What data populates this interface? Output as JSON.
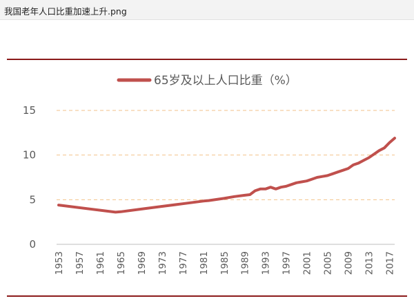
{
  "window": {
    "file_name": "我国老年人口比重加速上升.png"
  },
  "colors": {
    "line": "#c0504d",
    "rule": "#8b1a1a",
    "grid": "#f2c28a",
    "text": "#595959",
    "axis": "#bfbfbf"
  },
  "chart_data": {
    "type": "line",
    "title": "",
    "xlabel": "",
    "ylabel": "",
    "legend_position": "top-center",
    "grid": "horizontal dashed",
    "ylim": [
      0,
      15
    ],
    "xlim": [
      1953,
      2018
    ],
    "y_ticks": [
      "0",
      "5",
      "10",
      "15"
    ],
    "x_ticks": [
      "1953",
      "1957",
      "1961",
      "1965",
      "1969",
      "1973",
      "1977",
      "1981",
      "1985",
      "1989",
      "1993",
      "1997",
      "2001",
      "2005",
      "2009",
      "2013",
      "2017"
    ],
    "series": [
      {
        "name": "65岁及以上人口比重（%）",
        "points": [
          [
            1953,
            4.4
          ],
          [
            1964,
            3.6
          ],
          [
            1965,
            3.65
          ],
          [
            1969,
            3.95
          ],
          [
            1973,
            4.25
          ],
          [
            1977,
            4.55
          ],
          [
            1981,
            4.85
          ],
          [
            1982,
            4.9
          ],
          [
            1985,
            5.15
          ],
          [
            1987,
            5.35
          ],
          [
            1989,
            5.5
          ],
          [
            1990,
            5.57
          ],
          [
            1991,
            6.0
          ],
          [
            1992,
            6.2
          ],
          [
            1993,
            6.2
          ],
          [
            1994,
            6.4
          ],
          [
            1995,
            6.2
          ],
          [
            1996,
            6.4
          ],
          [
            1997,
            6.5
          ],
          [
            1998,
            6.7
          ],
          [
            1999,
            6.9
          ],
          [
            2000,
            7.0
          ],
          [
            2001,
            7.1
          ],
          [
            2002,
            7.3
          ],
          [
            2003,
            7.5
          ],
          [
            2004,
            7.6
          ],
          [
            2005,
            7.7
          ],
          [
            2006,
            7.9
          ],
          [
            2007,
            8.1
          ],
          [
            2008,
            8.3
          ],
          [
            2009,
            8.5
          ],
          [
            2010,
            8.9
          ],
          [
            2011,
            9.1
          ],
          [
            2012,
            9.4
          ],
          [
            2013,
            9.7
          ],
          [
            2014,
            10.1
          ],
          [
            2015,
            10.5
          ],
          [
            2016,
            10.8
          ],
          [
            2017,
            11.4
          ],
          [
            2018,
            11.9
          ]
        ]
      }
    ]
  }
}
